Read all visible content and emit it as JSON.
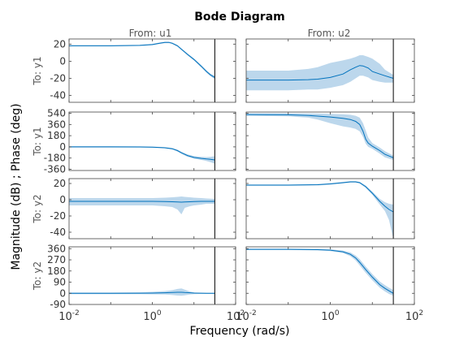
{
  "chart_data": {
    "type": "line",
    "title": "Bode Diagram",
    "xlabel": "Frequency  (rad/s)",
    "ylabel": "Magnitude (dB) ; Phase (deg)",
    "x_scale": "log",
    "xlim": [
      0.01,
      100
    ],
    "nyquist_frequency": 31.6,
    "colors": {
      "line": "#0072bd",
      "band": "#bcd7ec",
      "axes": "#444444",
      "tick_text": "#333333"
    },
    "grid": false,
    "columns": [
      "From: u1",
      "From: u2"
    ],
    "rows": [
      "To: y1",
      "To: y1",
      "To: y2",
      "To: y2"
    ],
    "x_ticks": [
      {
        "value": 0.01,
        "base": "10",
        "exp": "-2"
      },
      {
        "value": 1,
        "base": "10",
        "exp": "0"
      },
      {
        "value": 100,
        "base": "10",
        "exp": "2"
      }
    ],
    "subplots": [
      {
        "kind": "magnitude",
        "row": 0,
        "col": 0,
        "ylim": [
          -48,
          26
        ],
        "yticks": [
          {
            "v": 20,
            "label": "20"
          },
          {
            "v": 0,
            "label": "0"
          },
          {
            "v": -20,
            "label": "-20"
          },
          {
            "v": -40,
            "label": "-40"
          }
        ],
        "series": {
          "x": [
            0.01,
            0.1,
            0.5,
            1,
            1.5,
            2,
            2.5,
            3,
            4,
            5,
            7,
            10,
            15,
            20,
            25,
            31.6
          ],
          "y": [
            18,
            18,
            18.5,
            19.5,
            21,
            22,
            22,
            21,
            18,
            14,
            8,
            2,
            -6,
            -12,
            -16,
            -19
          ]
        },
        "band_upper": [
          18.6,
          18.6,
          19.2,
          20.3,
          21.8,
          22.8,
          22.8,
          21.9,
          19.0,
          15.0,
          9.2,
          3.2,
          -4.5,
          -10.5,
          -14.5,
          -17
        ],
        "band_lower": [
          17.4,
          17.4,
          17.8,
          18.7,
          20.2,
          21.2,
          21.2,
          20.1,
          17.0,
          13.0,
          6.8,
          0.8,
          -7.5,
          -13.5,
          -17.5,
          -21
        ]
      },
      {
        "kind": "magnitude",
        "row": 0,
        "col": 1,
        "ylim": [
          -48,
          26
        ],
        "yticks": [
          {
            "v": 20,
            "label": "20"
          },
          {
            "v": 0,
            "label": "0"
          },
          {
            "v": -20,
            "label": "-20"
          },
          {
            "v": -40,
            "label": "-40"
          }
        ],
        "series": {
          "x": [
            0.01,
            0.1,
            0.3,
            0.5,
            1,
            2,
            3,
            4,
            5,
            6,
            8,
            10,
            15,
            20,
            31.6
          ],
          "y": [
            -22,
            -22,
            -21.5,
            -21,
            -19,
            -15,
            -10,
            -7,
            -5,
            -5.5,
            -8,
            -12,
            -15,
            -17,
            -20
          ]
        },
        "band_upper": [
          -11,
          -11,
          -9,
          -7,
          -2,
          1,
          3,
          5,
          7,
          7,
          5,
          3,
          -3,
          -10,
          -16
        ],
        "band_lower": [
          -34,
          -34,
          -33,
          -33,
          -31,
          -28,
          -24,
          -20,
          -17,
          -17,
          -19,
          -22,
          -24,
          -25,
          -25
        ]
      },
      {
        "kind": "phase",
        "row": 1,
        "col": 0,
        "ylim": [
          -380,
          560
        ],
        "yticks": [
          {
            "v": 540,
            "label": "540"
          },
          {
            "v": 360,
            "label": "360"
          },
          {
            "v": 180,
            "label": "180"
          },
          {
            "v": 0,
            "label": "0"
          },
          {
            "v": -180,
            "label": "-180"
          },
          {
            "v": -360,
            "label": "-360"
          }
        ],
        "series": {
          "x": [
            0.01,
            0.1,
            0.5,
            1,
            2,
            3,
            4,
            5,
            7,
            10,
            15,
            20,
            25,
            31.6
          ],
          "y": [
            0,
            0,
            -2,
            -5,
            -15,
            -30,
            -60,
            -95,
            -140,
            -170,
            -185,
            -195,
            -200,
            -210
          ]
        },
        "band_upper": [
          10,
          10,
          8,
          5,
          -5,
          -18,
          -45,
          -78,
          -120,
          -148,
          -160,
          -165,
          -160,
          -150
        ],
        "band_lower": [
          -10,
          -10,
          -12,
          -15,
          -25,
          -42,
          -75,
          -112,
          -160,
          -192,
          -210,
          -228,
          -245,
          -270
        ]
      },
      {
        "kind": "phase",
        "row": 1,
        "col": 1,
        "ylim": [
          -380,
          560
        ],
        "yticks": [
          {
            "v": 540,
            "label": "540"
          },
          {
            "v": 360,
            "label": "360"
          },
          {
            "v": 180,
            "label": "180"
          },
          {
            "v": 0,
            "label": "0"
          },
          {
            "v": -180,
            "label": "-180"
          },
          {
            "v": -360,
            "label": "-360"
          }
        ],
        "series": {
          "x": [
            0.01,
            0.1,
            0.3,
            0.5,
            1,
            2,
            3,
            4,
            5,
            6,
            7,
            8,
            10,
            15,
            20,
            31.6
          ],
          "y": [
            520,
            515,
            505,
            495,
            480,
            460,
            440,
            410,
            360,
            250,
            120,
            60,
            10,
            -60,
            -120,
            -175
          ]
        },
        "band_upper": [
          540,
          540,
          538,
          535,
          530,
          525,
          515,
          500,
          470,
          380,
          260,
          150,
          60,
          -10,
          -70,
          -140
        ],
        "band_lower": [
          500,
          490,
          470,
          440,
          380,
          330,
          310,
          290,
          250,
          160,
          50,
          0,
          -30,
          -110,
          -170,
          -210
        ]
      },
      {
        "kind": "magnitude",
        "row": 2,
        "col": 0,
        "ylim": [
          -48,
          26
        ],
        "yticks": [
          {
            "v": 20,
            "label": "20"
          },
          {
            "v": 0,
            "label": "0"
          },
          {
            "v": -20,
            "label": "-20"
          },
          {
            "v": -40,
            "label": "-40"
          }
        ],
        "series": {
          "x": [
            0.01,
            0.1,
            0.5,
            1,
            2,
            3,
            4,
            5,
            6,
            8,
            10,
            15,
            20,
            31.6
          ],
          "y": [
            -2,
            -2,
            -2,
            -2,
            -2.2,
            -2.5,
            -2.8,
            -3,
            -2.8,
            -2.5,
            -2.2,
            -2,
            -2,
            -2
          ]
        },
        "band_upper": [
          2,
          2,
          2,
          2,
          2.5,
          3,
          3.5,
          4,
          3.5,
          3,
          2.5,
          2,
          1.5,
          1
        ],
        "band_lower": [
          -7,
          -7,
          -7,
          -7,
          -8,
          -9,
          -12,
          -18,
          -10,
          -8,
          -7,
          -6,
          -5,
          -5
        ]
      },
      {
        "kind": "magnitude",
        "row": 2,
        "col": 1,
        "ylim": [
          -48,
          26
        ],
        "yticks": [
          {
            "v": 20,
            "label": "20"
          },
          {
            "v": 0,
            "label": "0"
          },
          {
            "v": -20,
            "label": "-20"
          },
          {
            "v": -40,
            "label": "-40"
          }
        ],
        "series": {
          "x": [
            0.01,
            0.1,
            0.5,
            1,
            2,
            3,
            4,
            5,
            7,
            10,
            15,
            20,
            25,
            31.6
          ],
          "y": [
            18,
            18,
            18.5,
            19.5,
            21,
            22,
            22,
            21,
            16,
            8,
            -2,
            -8,
            -12,
            -15
          ]
        },
        "band_upper": [
          18.8,
          18.8,
          19.3,
          20.4,
          21.9,
          22.9,
          22.9,
          22,
          17.5,
          10,
          1,
          -3,
          -5,
          -6
        ],
        "band_lower": [
          17.2,
          17.2,
          17.6,
          18.6,
          20.1,
          21.1,
          21.1,
          20,
          14.5,
          6,
          -6,
          -14,
          -25,
          -48
        ]
      },
      {
        "kind": "phase",
        "row": 3,
        "col": 0,
        "ylim": [
          -90,
          375
        ],
        "yticks": [
          {
            "v": 360,
            "label": "360"
          },
          {
            "v": 270,
            "label": "270"
          },
          {
            "v": 180,
            "label": "180"
          },
          {
            "v": 90,
            "label": "90"
          },
          {
            "v": 0,
            "label": "0"
          },
          {
            "v": -90,
            "label": "-90"
          }
        ],
        "series": {
          "x": [
            0.01,
            0.1,
            0.5,
            1,
            2,
            3,
            4,
            5,
            6,
            8,
            10,
            15,
            20,
            31.6
          ],
          "y": [
            0,
            0,
            1,
            2,
            4,
            6,
            8,
            8,
            6,
            4,
            2,
            1,
            0,
            0
          ]
        },
        "band_upper": [
          6,
          6,
          8,
          12,
          18,
          25,
          35,
          40,
          30,
          15,
          8,
          5,
          4,
          4
        ],
        "band_lower": [
          -6,
          -6,
          -7,
          -8,
          -10,
          -14,
          -18,
          -20,
          -16,
          -10,
          -7,
          -5,
          -4,
          -4
        ]
      },
      {
        "kind": "phase",
        "row": 3,
        "col": 1,
        "ylim": [
          -90,
          375
        ],
        "yticks": [
          {
            "v": 360,
            "label": "360"
          },
          {
            "v": 270,
            "label": "270"
          },
          {
            "v": 180,
            "label": "180"
          },
          {
            "v": 90,
            "label": "90"
          },
          {
            "v": 0,
            "label": "0"
          },
          {
            "v": -90,
            "label": "-90"
          }
        ],
        "series": {
          "x": [
            0.01,
            0.1,
            0.5,
            1,
            2,
            3,
            4,
            5,
            7,
            10,
            15,
            20,
            25,
            31.6
          ],
          "y": [
            355,
            355,
            352,
            348,
            335,
            315,
            285,
            250,
            190,
            130,
            70,
            40,
            20,
            0
          ]
        },
        "band_upper": [
          360,
          360,
          358,
          355,
          345,
          330,
          305,
          275,
          215,
          155,
          95,
          65,
          45,
          25
        ],
        "band_lower": [
          350,
          350,
          346,
          341,
          325,
          300,
          265,
          225,
          165,
          105,
          45,
          15,
          -5,
          -20
        ]
      }
    ]
  }
}
